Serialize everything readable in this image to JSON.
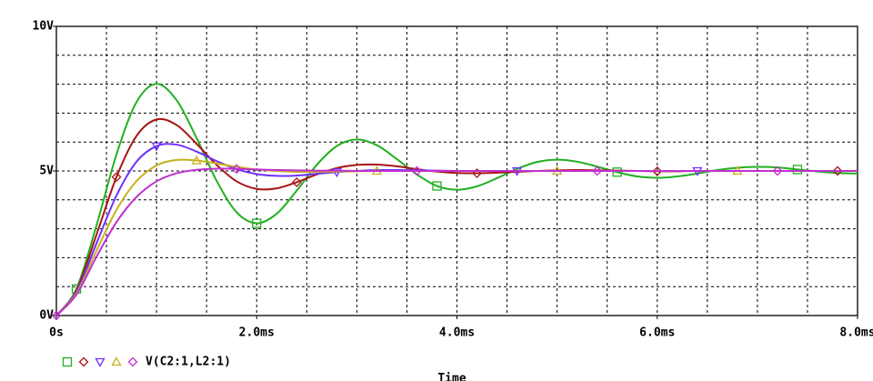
{
  "chart_data": {
    "type": "line",
    "x_label": "Time",
    "trace_label": "V(C2:1,L2:1)",
    "x": [
      0,
      0.2,
      0.4,
      0.6,
      0.8,
      1.0,
      1.2,
      1.4,
      1.6,
      1.8,
      2.0,
      2.2,
      2.4,
      2.6,
      2.8,
      3.0,
      3.2,
      3.4,
      3.6,
      3.8,
      4.0,
      4.2,
      4.4,
      4.6,
      4.8,
      5.0,
      5.2,
      5.4,
      5.6,
      5.8,
      6.0,
      6.2,
      6.4,
      6.6,
      6.8,
      7.0,
      7.2,
      7.4,
      7.6,
      7.8,
      8.0
    ],
    "series": [
      {
        "color": "#20b020",
        "marker": "square",
        "values": [
          0,
          0.92,
          3.11,
          5.57,
          7.38,
          8.01,
          7.45,
          6.14,
          4.66,
          3.57,
          3.19,
          3.52,
          4.32,
          5.21,
          5.86,
          6.09,
          5.89,
          5.41,
          4.88,
          4.48,
          4.35,
          4.47,
          4.75,
          5.07,
          5.31,
          5.39,
          5.32,
          5.15,
          4.96,
          4.81,
          4.76,
          4.81,
          4.91,
          5.03,
          5.11,
          5.14,
          5.12,
          5.05,
          4.98,
          4.93,
          4.91
        ]
      },
      {
        "color": "#a81414",
        "marker": "diamond",
        "values": [
          0,
          0.86,
          2.79,
          4.79,
          6.21,
          6.78,
          6.59,
          5.94,
          5.21,
          4.64,
          4.38,
          4.4,
          4.61,
          4.88,
          5.1,
          5.21,
          5.22,
          5.16,
          5.06,
          4.98,
          4.93,
          4.92,
          4.94,
          4.97,
          5.0,
          5.02,
          5.03,
          5.02,
          5.01,
          5,
          4.99,
          4.99,
          5,
          5,
          5,
          5,
          5,
          5,
          5,
          5,
          5
        ]
      },
      {
        "color": "#7030ff",
        "marker": "triangle-down",
        "values": [
          0,
          0.81,
          2.49,
          4.15,
          5.32,
          5.86,
          5.91,
          5.67,
          5.34,
          5.06,
          4.89,
          4.83,
          4.84,
          4.9,
          4.96,
          5.0,
          5.03,
          5.03,
          5.02,
          5.01,
          5.0,
          5,
          5,
          5,
          5,
          5,
          5,
          5,
          5,
          5,
          5,
          5,
          5,
          5,
          5,
          5,
          5,
          5,
          5,
          5,
          5
        ]
      },
      {
        "color": "#c8b020",
        "marker": "triangle-up",
        "values": [
          0,
          0.76,
          2.24,
          3.65,
          4.65,
          5.19,
          5.38,
          5.36,
          5.26,
          5.14,
          5.05,
          5.0,
          4.97,
          4.97,
          4.98,
          4.99,
          5,
          5,
          5,
          5,
          5,
          5,
          5,
          5,
          5,
          5,
          5,
          5,
          5,
          5,
          5,
          5,
          5,
          5,
          5,
          5,
          5,
          5,
          5,
          5,
          5
        ]
      },
      {
        "color": "#c030d0",
        "marker": "diamond",
        "values": [
          0,
          0.72,
          2.03,
          3.23,
          4.1,
          4.64,
          4.92,
          5.04,
          5.08,
          5.07,
          5.05,
          5.03,
          5.02,
          5.01,
          5.01,
          5,
          5,
          5,
          5,
          5,
          5,
          5,
          5,
          5,
          5,
          5,
          5,
          5,
          5,
          5,
          5,
          5,
          5,
          5,
          5,
          5,
          5,
          5,
          5,
          5,
          5
        ]
      }
    ],
    "xlim": [
      0,
      8
    ],
    "ylim": [
      0,
      10
    ],
    "xticks": [
      {
        "value": 0,
        "label": "0s"
      },
      {
        "value": 2,
        "label": "2.0ms"
      },
      {
        "value": 4,
        "label": "4.0ms"
      },
      {
        "value": 6,
        "label": "6.0ms"
      },
      {
        "value": 8,
        "label": "8.0ms"
      }
    ],
    "yticks": [
      {
        "value": 0,
        "label": "0V"
      },
      {
        "value": 5,
        "label": "5V"
      },
      {
        "value": 10,
        "label": "10V"
      }
    ],
    "xgrid": [
      0.5,
      1,
      1.5,
      2,
      2.5,
      3,
      3.5,
      4,
      4.5,
      5,
      5.5,
      6,
      6.5,
      7,
      7.5
    ],
    "ygrid": [
      1,
      2,
      3,
      4,
      5,
      6,
      7,
      8,
      9
    ],
    "grid": true
  }
}
